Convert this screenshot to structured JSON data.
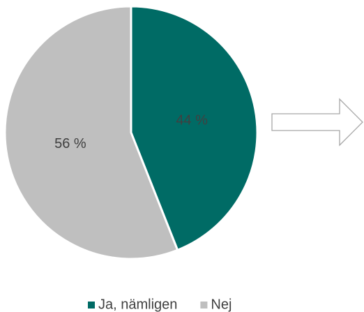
{
  "chart_data": {
    "type": "pie",
    "categories": [
      "Ja, nämligen",
      "Nej"
    ],
    "values": [
      44,
      56
    ],
    "value_labels": [
      "44 %",
      "56 %"
    ],
    "colors": [
      "#006b65",
      "#bfbfbf"
    ],
    "legend": "bottom"
  }
}
